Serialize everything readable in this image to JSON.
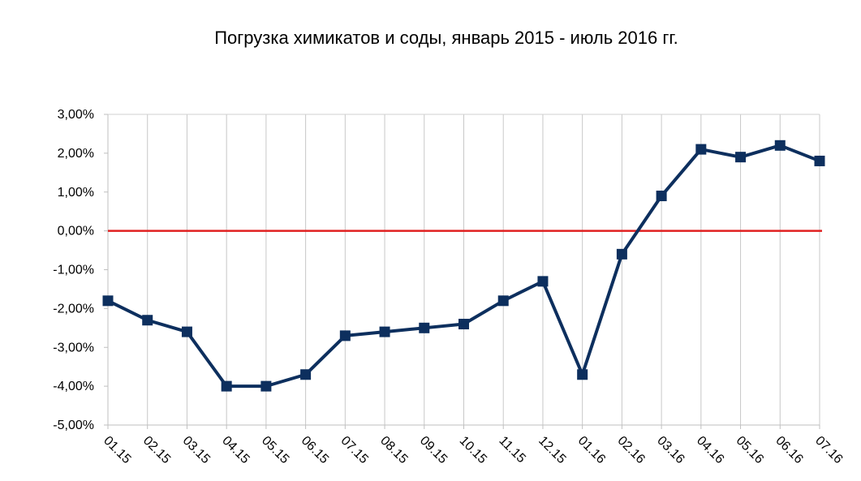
{
  "chart_data": {
    "type": "line",
    "title": "Погрузка химикатов и соды, январь 2015 - июль 2016 гг.",
    "xlabel": "",
    "ylabel": "",
    "categories": [
      "01.15",
      "02.15",
      "03.15",
      "04.15",
      "05.15",
      "06.15",
      "07.15",
      "08.15",
      "09.15",
      "10.15",
      "11.15",
      "12.15",
      "01.16",
      "02.16",
      "03.16",
      "04.16",
      "05.16",
      "06.16",
      "07.16"
    ],
    "series": [
      {
        "values": [
          -1.8,
          -2.3,
          -2.6,
          -4.0,
          -4.0,
          -3.7,
          -2.7,
          -2.6,
          -2.5,
          -2.4,
          -1.8,
          -1.3,
          -3.7,
          -0.6,
          0.9,
          2.1,
          1.9,
          2.2,
          1.8
        ],
        "color": "#0d2f5e"
      }
    ],
    "reference_line": {
      "value": 0,
      "color": "#e02020"
    },
    "ylim": [
      -5,
      3
    ],
    "yticks": [
      3,
      2,
      1,
      0,
      -1,
      -2,
      -3,
      -4,
      -5
    ],
    "ytick_labels": [
      "3,00%",
      "2,00%",
      "1,00%",
      "0,00%",
      "-1,00%",
      "-2,00%",
      "-3,00%",
      "-4,00%",
      "-5,00%"
    ],
    "grid": "vertical",
    "legend": "none"
  }
}
